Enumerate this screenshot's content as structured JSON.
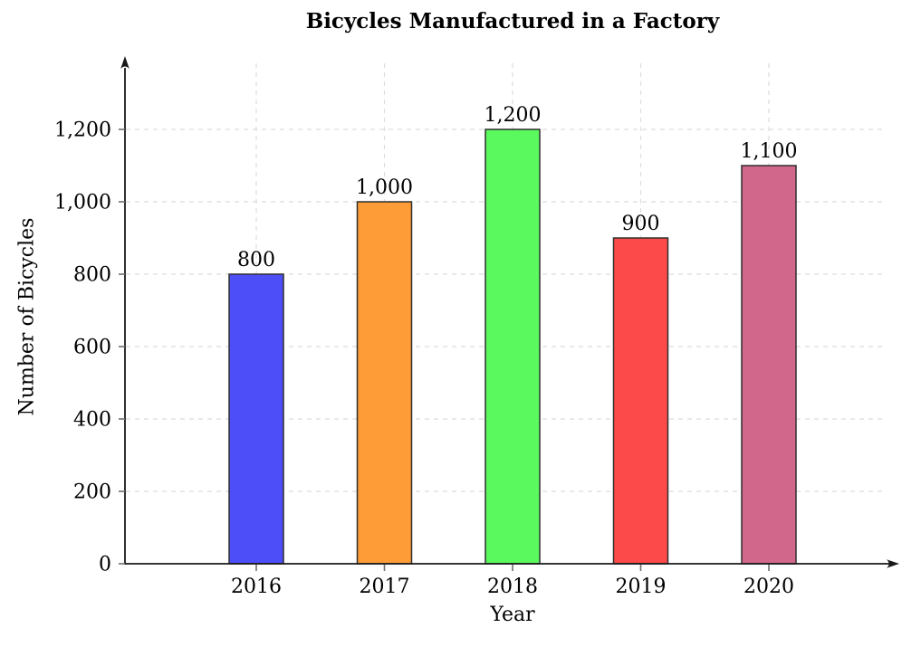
{
  "chart_data": {
    "type": "bar",
    "title": "Bicycles Manufactured in a Factory",
    "xlabel": "Year",
    "ylabel": "Number of Bicycles",
    "categories": [
      "2016",
      "2017",
      "2018",
      "2019",
      "2020"
    ],
    "values": [
      800,
      1000,
      1200,
      900,
      1100
    ],
    "value_labels": [
      "800",
      "1,000",
      "1,200",
      "900",
      "1,100"
    ],
    "bar_colors": [
      "#4e4ef8",
      "#fe9c38",
      "#5afa5e",
      "#fc4a4a",
      "#d2678c"
    ],
    "bar_border_color": "#2f2f2f",
    "yticks": [
      0,
      200,
      400,
      600,
      800,
      1000,
      1200
    ],
    "ytick_labels": [
      "0",
      "200",
      "400",
      "600",
      "800",
      "1,000",
      "1,200"
    ],
    "ylim": [
      0,
      1390
    ],
    "grid": true,
    "grid_color": "#dcdcdc",
    "axis_color": "#1a1a1a",
    "tick_color": "#6e6e6e",
    "text_color": "#000000"
  }
}
